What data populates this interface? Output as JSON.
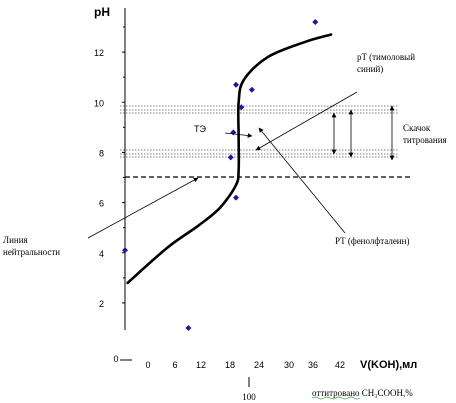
{
  "chart_data": {
    "type": "scatter",
    "title": "",
    "ylabel": "pH",
    "xlabel": "V(KOH),мл",
    "x_ticks": [
      "0",
      "6",
      "12",
      "18",
      "24",
      "30",
      "36",
      "42"
    ],
    "y_ticks": [
      "2",
      "4",
      "6",
      "8",
      "10",
      "12"
    ],
    "xlim": [
      0,
      42
    ],
    "ylim": [
      1,
      13
    ],
    "grid": false,
    "legend": "none",
    "series": [
      {
        "points": [
          {
            "x": 0,
            "y": 4.1
          },
          {
            "x": 12,
            "y": 1.0
          },
          {
            "x": 20,
            "y": 7.8
          },
          {
            "x": 20.5,
            "y": 8.8
          },
          {
            "x": 21,
            "y": 10.7
          },
          {
            "x": 21,
            "y": 6.2
          },
          {
            "x": 22,
            "y": 9.8
          },
          {
            "x": 24,
            "y": 10.5
          },
          {
            "x": 36,
            "y": 13.2
          }
        ],
        "color": "#1a1a9c"
      }
    ],
    "curve": [
      {
        "x": 0.5,
        "y": 2.8
      },
      {
        "x": 8,
        "y": 4.2
      },
      {
        "x": 14,
        "y": 5.1
      },
      {
        "x": 18,
        "y": 5.8
      },
      {
        "x": 21,
        "y": 6.7
      },
      {
        "x": 21.5,
        "y": 7.3
      },
      {
        "x": 21.5,
        "y": 8.6
      },
      {
        "x": 21.5,
        "y": 10.0
      },
      {
        "x": 22.5,
        "y": 10.9
      },
      {
        "x": 27,
        "y": 11.8
      },
      {
        "x": 34,
        "y": 12.4
      },
      {
        "x": 39,
        "y": 12.7
      }
    ],
    "annotations": {
      "neutral_line_label": "Линия\nнейтральности",
      "te_label": "ТЭ",
      "pt_label": "pT (тимоловый\nсиний)",
      "jump_label": "Скачок\nтитрования",
      "phenol_label": "РТ (фенолфталеин)",
      "bottom_zero": "0",
      "bottom_hundred": "100",
      "bottom_caption": "оттитровано CH₃COOH,%"
    }
  }
}
